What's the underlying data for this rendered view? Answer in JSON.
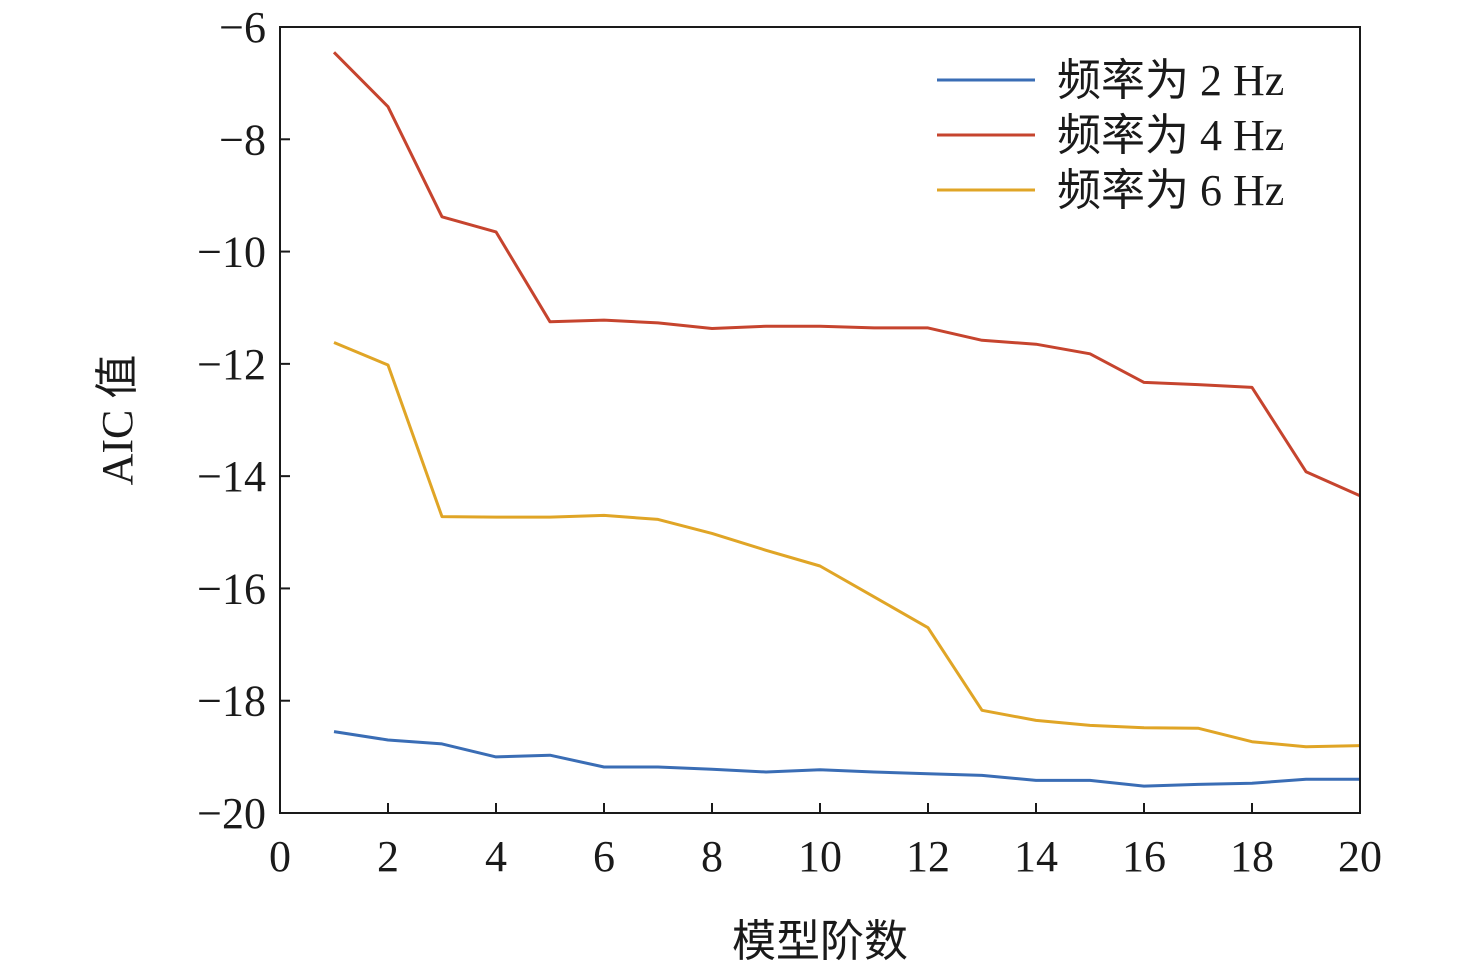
{
  "chart_data": {
    "type": "line",
    "xlabel": "模型阶数",
    "ylabel": "AIC 值",
    "xlim": [
      0,
      20
    ],
    "ylim": [
      -20,
      -6
    ],
    "xticks": [
      0,
      2,
      4,
      6,
      8,
      10,
      12,
      14,
      16,
      18,
      20
    ],
    "yticks": [
      -6,
      -8,
      -10,
      -12,
      -14,
      -16,
      -18,
      -20
    ],
    "xtick_labels": [
      "0",
      "2",
      "4",
      "6",
      "8",
      "10",
      "12",
      "14",
      "16",
      "18",
      "20"
    ],
    "ytick_labels": [
      "−6",
      "−8",
      "−10",
      "−12",
      "−14",
      "−16",
      "−18",
      "−20"
    ],
    "grid": false,
    "legend_position": "top-right",
    "x": [
      1,
      2,
      3,
      4,
      5,
      6,
      7,
      8,
      9,
      10,
      11,
      12,
      13,
      14,
      15,
      16,
      17,
      18,
      19,
      20
    ],
    "series": [
      {
        "name": "频率为 2 Hz",
        "color": "#3a6db5",
        "values": [
          -18.55,
          -18.7,
          -18.77,
          -19.0,
          -18.97,
          -19.18,
          -19.18,
          -19.22,
          -19.27,
          -19.23,
          -19.27,
          -19.3,
          -19.33,
          -19.42,
          -19.42,
          -19.52,
          -19.49,
          -19.47,
          -19.4,
          -19.4
        ]
      },
      {
        "name": "频率为 4 Hz",
        "color": "#c6442e",
        "values": [
          -6.45,
          -7.42,
          -9.38,
          -9.65,
          -11.25,
          -11.22,
          -11.27,
          -11.37,
          -11.33,
          -11.33,
          -11.36,
          -11.36,
          -11.58,
          -11.65,
          -11.82,
          -12.33,
          -12.37,
          -12.42,
          -13.92,
          -14.35
        ]
      },
      {
        "name": "频率为 6 Hz",
        "color": "#e0a526",
        "values": [
          -11.62,
          -12.02,
          -14.72,
          -14.73,
          -14.73,
          -14.7,
          -14.77,
          -15.02,
          -15.32,
          -15.6,
          -16.15,
          -16.7,
          -18.17,
          -18.35,
          -18.44,
          -18.48,
          -18.49,
          -18.73,
          -18.82,
          -18.8
        ]
      }
    ]
  }
}
